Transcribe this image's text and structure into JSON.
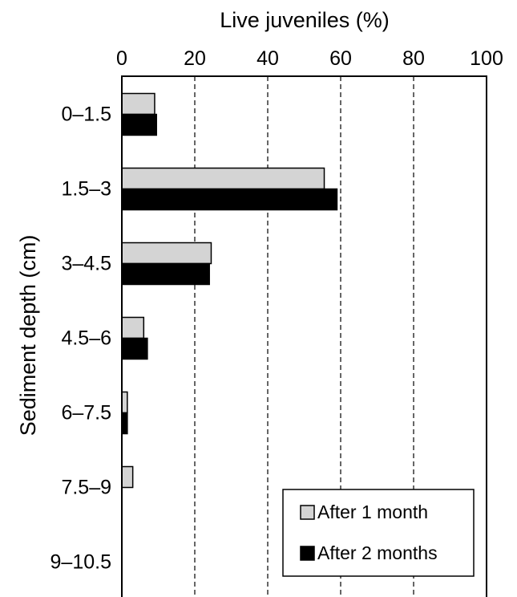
{
  "chart_data": {
    "type": "bar",
    "orientation": "horizontal",
    "xlabel": "Live juveniles (%)",
    "ylabel": "Sediment depth (cm)",
    "xlim": [
      0,
      100
    ],
    "xticks": [
      "0",
      "20",
      "40",
      "60",
      "80",
      "100"
    ],
    "categories": [
      "0–1.5",
      "1.5–3",
      "3–4.5",
      "4.5–6",
      "6–7.5",
      "7.5–9",
      "9–10.5"
    ],
    "series": [
      {
        "name": "After 1 month",
        "color": "#d4d4d4",
        "values": [
          9,
          55.5,
          24.5,
          6,
          1.5,
          3,
          0
        ]
      },
      {
        "name": "After 2 months",
        "color": "#000000",
        "values": [
          9.5,
          59,
          24,
          7,
          1.5,
          0,
          0
        ]
      }
    ],
    "grid": "vertical dashed at 20, 40, 60, 80",
    "legend_position": "bottom-right"
  }
}
